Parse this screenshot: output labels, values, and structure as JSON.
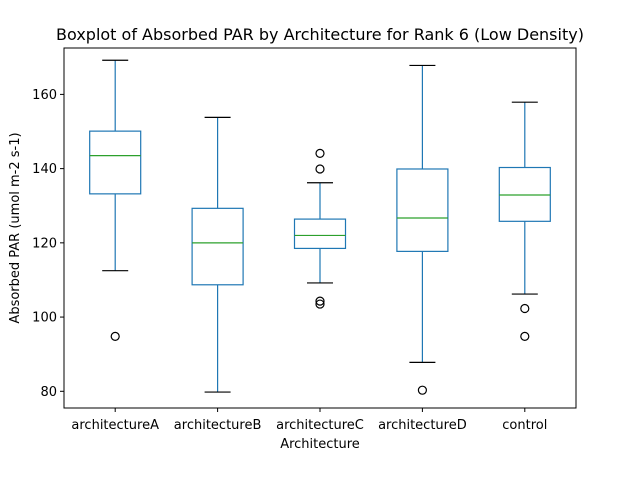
{
  "chart_data": {
    "type": "boxplot",
    "title": "Boxplot of Absorbed PAR by Architecture for Rank 6 (Low Density)",
    "xlabel": "Architecture",
    "ylabel": "Absorbed PAR (umol m-2 s-1)",
    "ylim": [
      75.5,
      172.5
    ],
    "yticks": [
      80,
      100,
      120,
      140,
      160
    ],
    "grid": false,
    "categories": [
      "architectureA",
      "architectureB",
      "architectureC",
      "architectureD",
      "control"
    ],
    "boxes": [
      {
        "category": "architectureA",
        "whisker_low": 112.5,
        "q1": 133.2,
        "median": 143.5,
        "q3": 150.1,
        "whisker_high": 169.2,
        "outliers": [
          94.8
        ]
      },
      {
        "category": "architectureB",
        "whisker_low": 79.8,
        "q1": 108.7,
        "median": 120.0,
        "q3": 129.3,
        "whisker_high": 153.8,
        "outliers": []
      },
      {
        "category": "architectureC",
        "whisker_low": 109.2,
        "q1": 118.5,
        "median": 122.0,
        "q3": 126.4,
        "whisker_high": 136.2,
        "outliers": [
          144.1,
          139.9,
          104.3,
          103.5
        ]
      },
      {
        "category": "architectureD",
        "whisker_low": 87.8,
        "q1": 117.7,
        "median": 126.7,
        "q3": 139.9,
        "whisker_high": 167.8,
        "outliers": [
          80.3
        ]
      },
      {
        "category": "control",
        "whisker_low": 106.2,
        "q1": 125.8,
        "median": 132.9,
        "q3": 140.3,
        "whisker_high": 157.9,
        "outliers": [
          102.3,
          94.8
        ]
      }
    ],
    "colors": {
      "box": "#1f77b4",
      "median": "#2ca02c",
      "cap": "#000000",
      "outlier": "#000000"
    }
  }
}
